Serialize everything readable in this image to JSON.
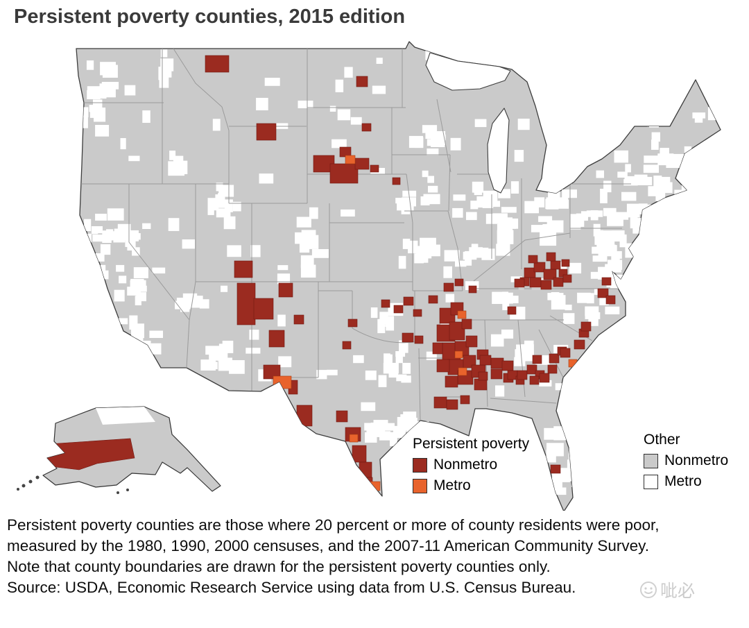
{
  "title": "Persistent poverty counties, 2015 edition",
  "legend": {
    "persistent": {
      "heading": "Persistent poverty",
      "items": [
        {
          "label": "Nonmetro",
          "color": "#9b2b20"
        },
        {
          "label": "Metro",
          "color": "#e8632c"
        }
      ]
    },
    "other": {
      "heading": "Other",
      "items": [
        {
          "label": "Nonmetro",
          "color": "#cacaca"
        },
        {
          "label": "Metro",
          "color": "#ffffff"
        }
      ]
    }
  },
  "map": {
    "type": "choropleth",
    "area": "United States counties (lower 48 states and Alaska)",
    "colors": {
      "persistent_nonmetro": "#9b2b20",
      "persistent_metro": "#e8632c",
      "other_nonmetro": "#cacaca",
      "other_metro": "#ffffff",
      "state_border": "#9a9a9a",
      "coast": "#3c3c3c"
    }
  },
  "notes": [
    "Persistent poverty counties are those where 20 percent or more of county residents were poor, measured by the 1980, 1990, 2000 censuses, and the 2007-11 American Community Survey.",
    "Note that county boundaries are drawn for the persistent poverty counties only.",
    "Source: USDA, Economic Research Service using data from U.S. Census Bureau."
  ],
  "watermark": {
    "text": "呲必"
  }
}
